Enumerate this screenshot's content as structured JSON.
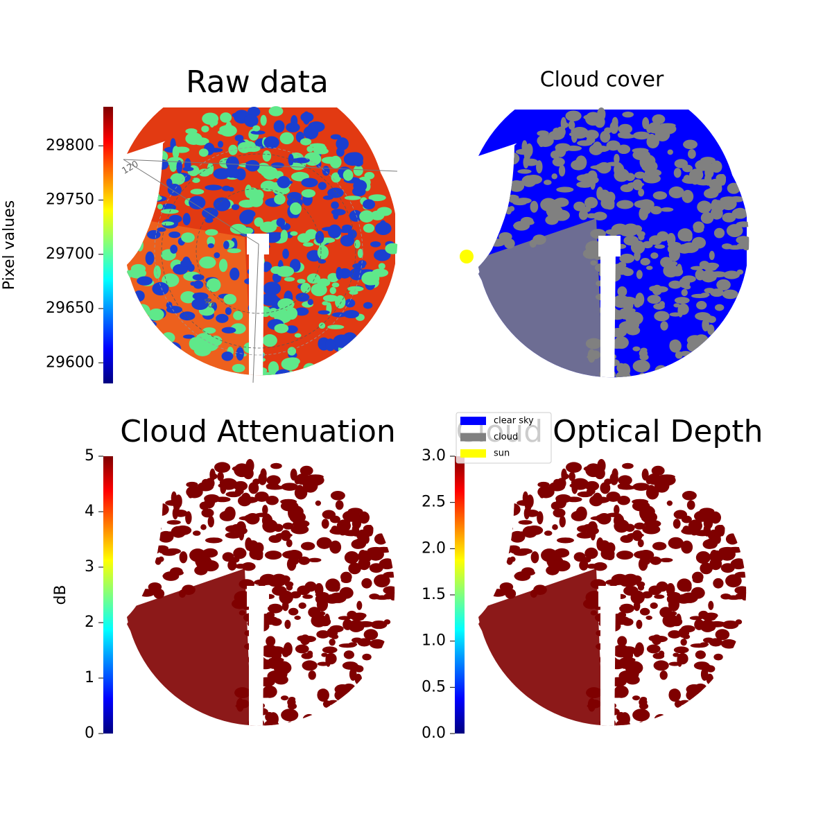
{
  "chart_data": [
    {
      "type": "image",
      "title": "Raw data",
      "colorbar_label": "Pixel values",
      "ylim": [
        29581,
        29836
      ],
      "yticks": [
        29600,
        29650,
        29700,
        29750,
        29800
      ],
      "colormap": [
        "#00007f",
        "#0000ff",
        "#007fff",
        "#00ffff",
        "#7fff7f",
        "#ffff00",
        "#ff7f00",
        "#ff0000",
        "#7f0000"
      ],
      "annotations": [
        "120",
        "40"
      ]
    },
    {
      "type": "image",
      "title": "Cloud cover",
      "series": [
        {
          "name": "clear sky",
          "color": "#0000ff"
        },
        {
          "name": "cloud",
          "color": "#808080"
        },
        {
          "name": "sun",
          "color": "#ffff00"
        }
      ]
    },
    {
      "type": "image",
      "title": "Cloud Attenuation",
      "colorbar_label": "dB",
      "ylim": [
        0,
        5
      ],
      "yticks": [
        0,
        1,
        2,
        3,
        4,
        5
      ],
      "colormap": [
        "#00007f",
        "#0000ff",
        "#007fff",
        "#00ffff",
        "#7fff7f",
        "#ffff00",
        "#ff7f00",
        "#ff0000",
        "#7f0000"
      ]
    },
    {
      "type": "image",
      "title": "Cloud Optical Depth",
      "ylim": [
        0,
        3
      ],
      "yticks": [
        {
          "value": 0,
          "label": "0.0"
        },
        0.5,
        {
          "value": 1,
          "label": "1.0"
        },
        1.5,
        {
          "value": 2,
          "label": "2.0"
        },
        2.5,
        {
          "value": 3,
          "label": "3.0"
        }
      ],
      "colormap": [
        "#00007f",
        "#0000ff",
        "#007fff",
        "#00ffff",
        "#7fff7f",
        "#ffff00",
        "#ff7f00",
        "#ff0000",
        "#7f0000"
      ]
    }
  ]
}
